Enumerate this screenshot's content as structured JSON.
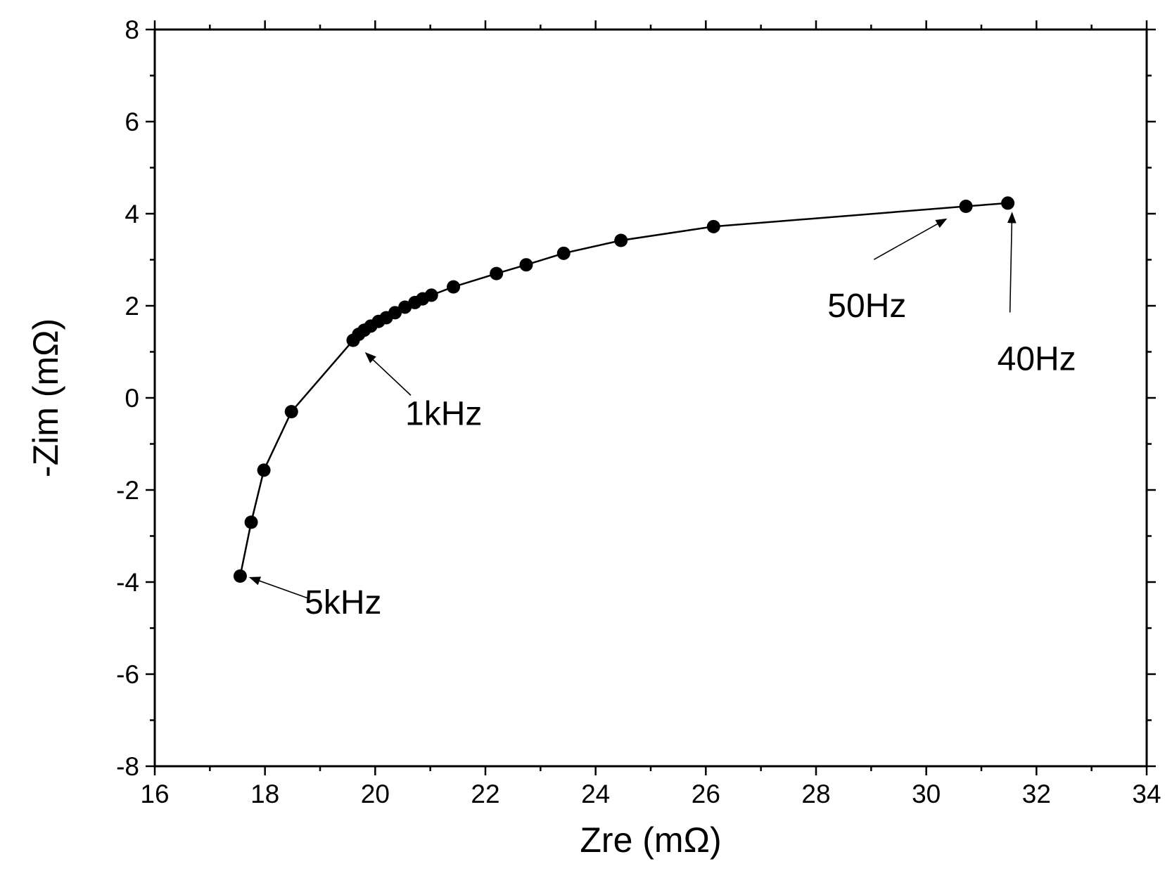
{
  "chart_data": {
    "type": "scatter",
    "xlabel": "Zre (mΩ)",
    "ylabel": "-Zim (mΩ)",
    "xlim": [
      16,
      34
    ],
    "ylim": [
      -8,
      8
    ],
    "xticks": [
      16,
      18,
      20,
      22,
      24,
      26,
      28,
      30,
      32,
      34
    ],
    "yticks": [
      -8,
      -6,
      -4,
      -2,
      0,
      2,
      4,
      6,
      8
    ],
    "x_minor_step": 1,
    "y_minor_step": 1,
    "grid": false,
    "legend": "none",
    "marker_color": "#000000",
    "line_color": "#000000",
    "series": [
      {
        "x": [
          17.55,
          17.75,
          17.98,
          18.48,
          19.6,
          19.7,
          19.8,
          19.92,
          20.06,
          20.2,
          20.36,
          20.54,
          20.72,
          20.86,
          21.02,
          21.42,
          22.2,
          22.74,
          23.42,
          24.46,
          26.14,
          30.72,
          31.48
        ],
        "y": [
          -3.87,
          -2.7,
          -1.57,
          -0.3,
          1.25,
          1.38,
          1.47,
          1.56,
          1.66,
          1.74,
          1.85,
          1.97,
          2.07,
          2.15,
          2.23,
          2.41,
          2.7,
          2.89,
          3.14,
          3.42,
          3.72,
          4.16,
          4.23
        ]
      }
    ],
    "annotations": [
      {
        "text": "5kHz",
        "point_x": 17.55,
        "point_y": -3.87,
        "label_x": 18.9,
        "label_y": -4.5
      },
      {
        "text": "1kHz",
        "point_x": 19.6,
        "point_y": 1.25,
        "label_x": 20.8,
        "label_y": -0.25
      },
      {
        "text": "50Hz",
        "point_x": 30.72,
        "point_y": 4.16,
        "label_x": 29.0,
        "label_y": 2.7
      },
      {
        "text": "40Hz",
        "point_x": 31.48,
        "point_y": 4.23,
        "label_x": 31.8,
        "label_y": 1.55
      }
    ]
  }
}
